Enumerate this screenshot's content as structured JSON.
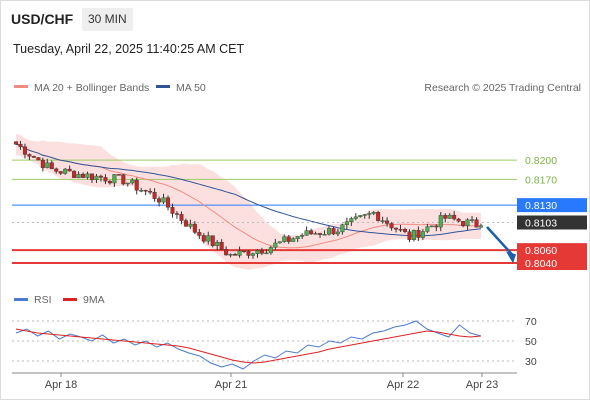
{
  "header": {
    "symbol": "USD/CHF",
    "interval": "30 MIN",
    "datetime": "Tuesday, April 22, 2025 11:40:25 AM CET"
  },
  "legend": {
    "ma20_label": "MA 20 + Bollinger Bands",
    "ma50_label": "MA 50",
    "copyright": "Research © 2025 Trading Central",
    "colors": {
      "ma20": "#f28b82",
      "bands": "#f9c6c6",
      "ma50": "#2f5597"
    }
  },
  "rsi_legend": {
    "rsi_label": "RSI",
    "ma_label": "9MA",
    "colors": {
      "rsi": "#4a7bd0",
      "ma": "#dd2222"
    }
  },
  "chart_data": [
    {
      "type": "candlestick",
      "title": "",
      "ylim": [
        0.8012,
        0.8292
      ],
      "x_ticks": [
        "Apr 18",
        "Apr 21",
        "Apr 22",
        "Apr 23"
      ],
      "levels": [
        {
          "value": 0.82,
          "label": "0.8200",
          "kind": "resistance",
          "color": "#9ccc65"
        },
        {
          "value": 0.817,
          "label": "0.8170",
          "kind": "resistance",
          "color": "#9ccc65"
        },
        {
          "value": 0.813,
          "label": "0.8130",
          "kind": "pivot",
          "color": "#2979ff"
        },
        {
          "value": 0.8103,
          "label": "0.8103",
          "kind": "last",
          "color": "#333333"
        },
        {
          "value": 0.806,
          "label": "0.8060",
          "kind": "support",
          "color": "#e53935"
        },
        {
          "value": 0.804,
          "label": "0.8040",
          "kind": "support",
          "color": "#e53935"
        }
      ],
      "forecast_arrow": {
        "from": 0.8096,
        "to": 0.8044,
        "color": "#1f5fa8"
      },
      "key_closes": [
        0.8225,
        0.8185,
        0.8176,
        0.8169,
        0.814,
        0.809,
        0.8052,
        0.8063,
        0.8084,
        0.8092,
        0.8118,
        0.808,
        0.811,
        0.8098
      ]
    },
    {
      "type": "line",
      "title": "",
      "ylim": [
        20,
        80
      ],
      "y_ticks": [
        70,
        50,
        30
      ],
      "series": [
        {
          "name": "RSI",
          "values": [
            58,
            62,
            55,
            60,
            52,
            57,
            54,
            50,
            56,
            48,
            52,
            46,
            50,
            44,
            48,
            42,
            38,
            35,
            28,
            24,
            27,
            22,
            30,
            36,
            33,
            40,
            38,
            46,
            44,
            50,
            48,
            54,
            52,
            58,
            60,
            64,
            66,
            70,
            62,
            58,
            54,
            66,
            58,
            55
          ]
        },
        {
          "name": "9MA",
          "values": [
            62,
            60,
            58,
            57,
            56,
            55,
            54,
            53,
            52,
            51,
            50,
            49,
            48,
            47,
            46,
            45,
            43,
            40,
            37,
            34,
            31,
            29,
            28,
            29,
            31,
            33,
            35,
            37,
            39,
            42,
            44,
            46,
            48,
            50,
            52,
            54,
            56,
            58,
            60,
            59,
            57,
            55,
            54,
            55
          ]
        }
      ]
    }
  ]
}
